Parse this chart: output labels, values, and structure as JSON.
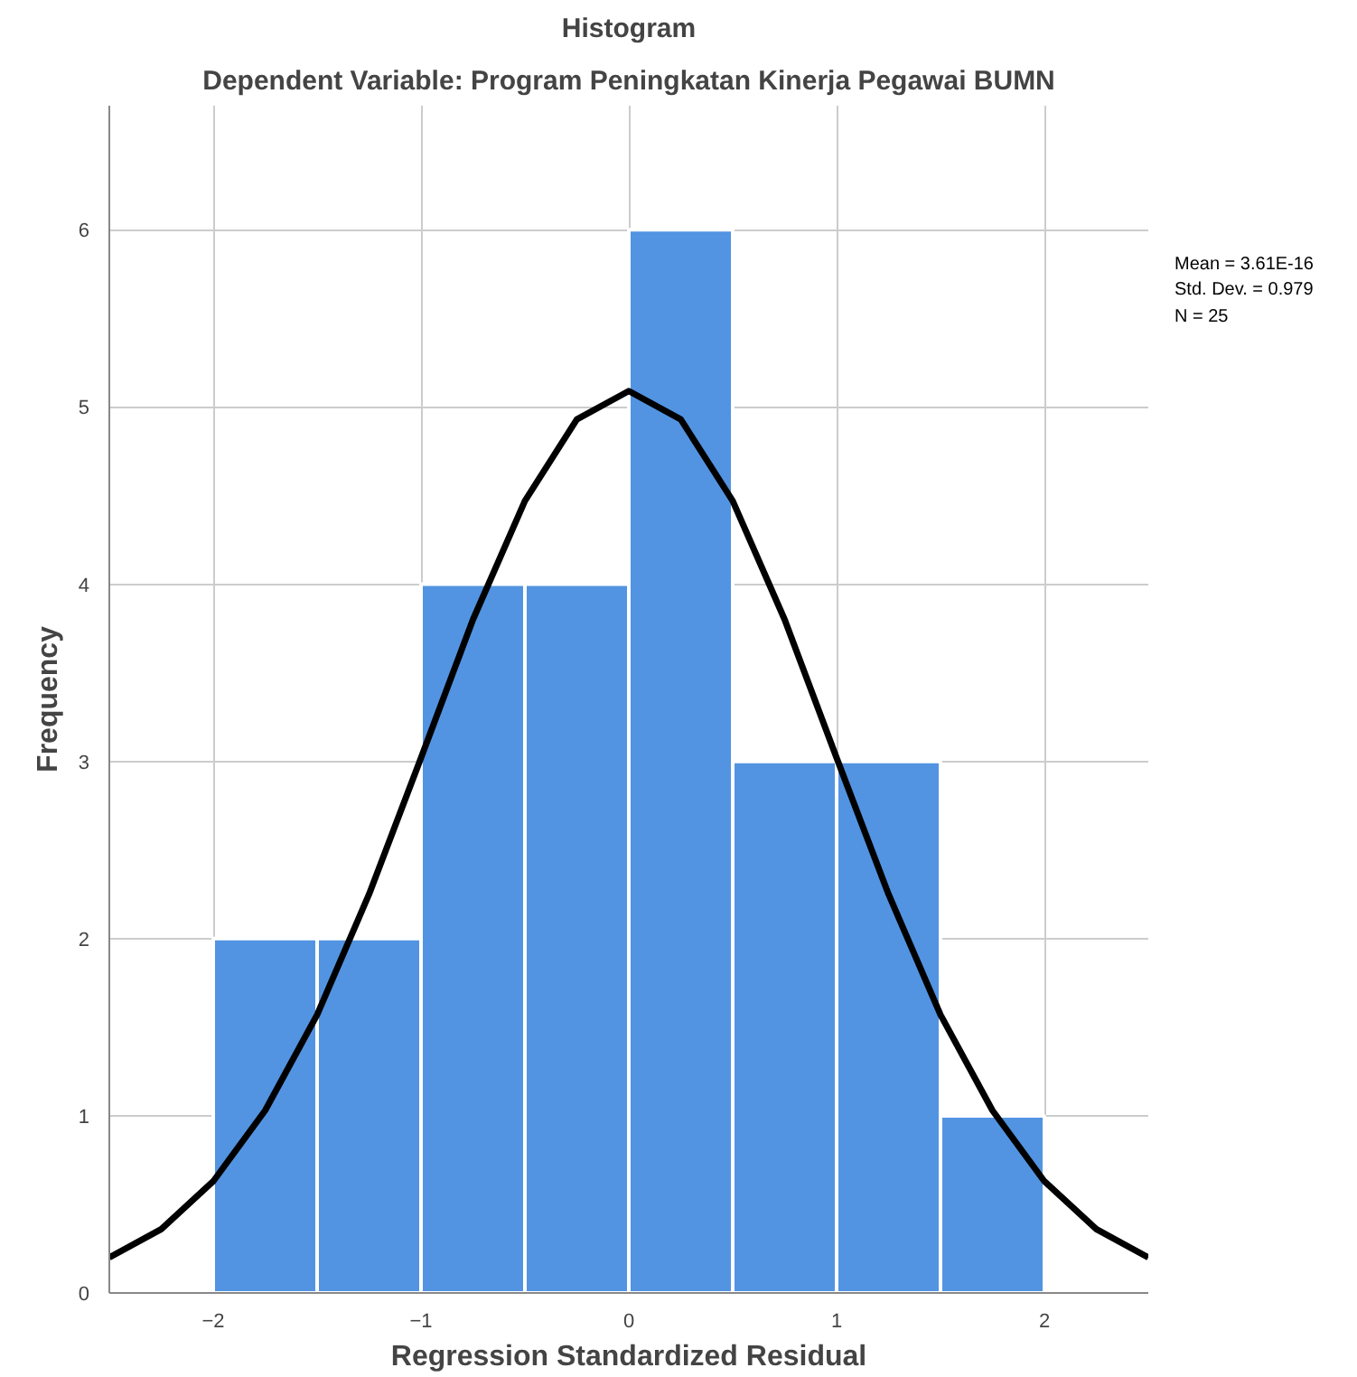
{
  "chart_data": {
    "type": "histogram",
    "title": "Histogram",
    "subtitle": "Dependent Variable: Program Peningkatan Kinerja Pegawai BUMN",
    "xlabel": "Regression Standardized Residual",
    "ylabel": "Frequency",
    "bins": [
      -2,
      -1.5,
      -1,
      -0.5,
      0,
      0.5,
      1,
      1.5,
      2
    ],
    "values": [
      2,
      2,
      4,
      4,
      6,
      3,
      3,
      1
    ],
    "color": "#5294e2",
    "series": [
      {
        "type": "line",
        "color": "#000000",
        "x": [
          -2.5,
          -2.25,
          -2,
          -1.75,
          -1.5,
          -1.25,
          -1,
          -0.75,
          -0.5,
          -0.25,
          0,
          0.25,
          0.5,
          0.75,
          1,
          1.25,
          1.5,
          1.75,
          2,
          2.25,
          2.5
        ],
        "values": [
          0.2,
          0.36,
          0.63,
          1.03,
          1.57,
          2.25,
          3.02,
          3.8,
          4.47,
          4.93,
          5.09,
          4.93,
          4.47,
          3.8,
          3.02,
          2.25,
          1.57,
          1.03,
          0.63,
          0.36,
          0.2
        ]
      }
    ],
    "xlim": [
      -2.5,
      2.5
    ],
    "ylim": [
      0,
      6.7
    ],
    "xticks": [
      -2,
      -1,
      0,
      1,
      2
    ],
    "yticks": [
      0,
      1,
      2,
      3,
      4,
      5,
      6
    ],
    "grid": true,
    "annotations": [
      "Mean = 3.61E-16",
      "Std. Dev. = 0.979",
      "N = 25"
    ]
  }
}
